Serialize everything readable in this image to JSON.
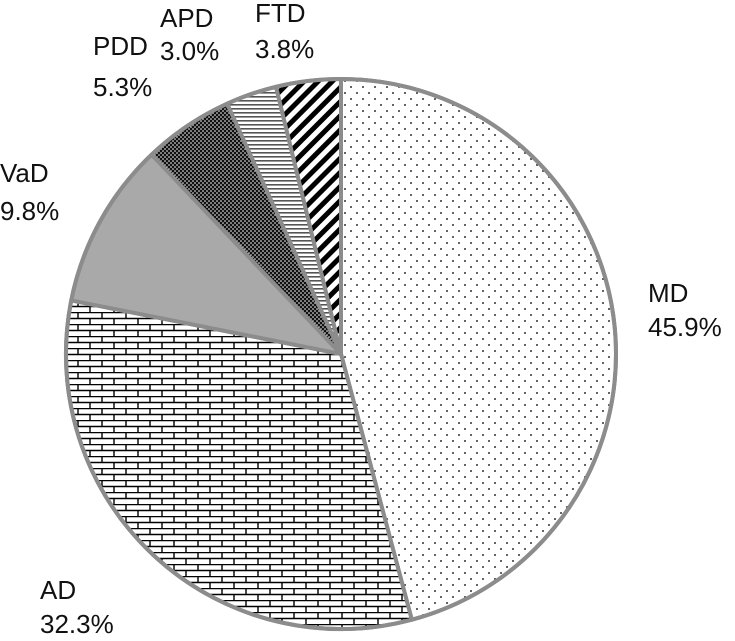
{
  "chart_data": {
    "type": "pie",
    "title": "",
    "start_angle_deg": 0,
    "direction": "clockwise",
    "border_color": "#8c8c8c",
    "slices": [
      {
        "label": "MD",
        "value": 45.9,
        "value_label": "45.9%",
        "pattern": "dots-sparse",
        "color": "#ffffff"
      },
      {
        "label": "AD",
        "value": 32.3,
        "value_label": "32.3%",
        "pattern": "brick",
        "color": "#ffffff"
      },
      {
        "label": "VaD",
        "value": 9.8,
        "value_label": "9.8%",
        "pattern": "solid-gray",
        "color": "#a9a9a9"
      },
      {
        "label": "PDD",
        "value": 5.3,
        "value_label": "5.3%",
        "pattern": "dense-dots",
        "color": "#1a1a1a"
      },
      {
        "label": "APD",
        "value": 3.0,
        "value_label": "3.0%",
        "pattern": "horizontal-lines",
        "color": "#ffffff"
      },
      {
        "label": "FTD",
        "value": 3.8,
        "value_label": "3.8%",
        "pattern": "diagonal-stripes",
        "color": "#000000"
      }
    ]
  }
}
